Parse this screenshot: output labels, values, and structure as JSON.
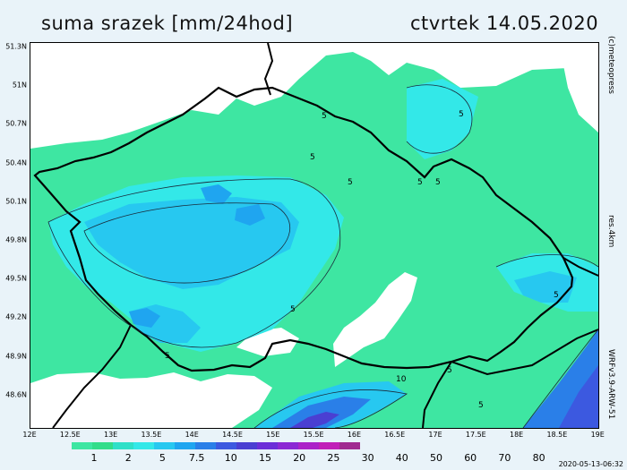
{
  "header": {
    "title": "suma srazek [mm/24hod]",
    "date": "ctvrtek 14.05.2020"
  },
  "axes": {
    "lat_ticks": [
      "51.3N",
      "51N",
      "50.7N",
      "50.4N",
      "50.1N",
      "49.8N",
      "49.5N",
      "49.2N",
      "48.9N",
      "48.6N"
    ],
    "lon_ticks": [
      "12E",
      "12.5E",
      "13E",
      "13.5E",
      "14E",
      "14.5E",
      "15E",
      "15.5E",
      "16E",
      "16.5E",
      "17E",
      "17.5E",
      "18E",
      "18.5E",
      "19E"
    ]
  },
  "side_labels": {
    "right_top": "(c)meteopress",
    "right_mid": "res.4km",
    "right_bottom": "WRFv3.9-ARW-51"
  },
  "legend": {
    "labels": [
      "1",
      "2",
      "5",
      "7.5",
      "10",
      "15",
      "20",
      "25",
      "30",
      "40",
      "50",
      "60",
      "70",
      "80"
    ],
    "colors": [
      "#3ee6a2",
      "#33dd8a",
      "#2fe0c8",
      "#33e8e8",
      "#27c8f0",
      "#1fa5f0",
      "#2a7fe8",
      "#3c59e0",
      "#4a3fd2",
      "#6b2ed8",
      "#8b28d4",
      "#ab22c8",
      "#c01fb8",
      "#a02a90"
    ]
  },
  "contour_labels": [
    "5",
    "5",
    "5",
    "5",
    "5",
    "5",
    "5",
    "5",
    "10",
    "5",
    "5",
    "5"
  ],
  "footer": {
    "timestamp": "2020-05-13-06:32"
  }
}
